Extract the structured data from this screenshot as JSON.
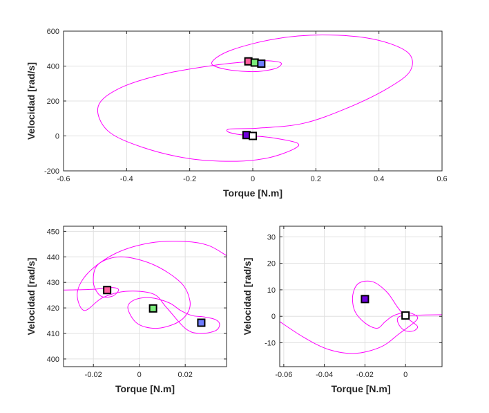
{
  "figure": {
    "background": "#ffffff",
    "curve_color": "#ff00ff",
    "grid_color": "#e0e0e0",
    "axis_color": "#262626"
  },
  "chart_data": [
    {
      "id": "top",
      "type": "line",
      "title": "",
      "xlabel": "Torque [N.m]",
      "ylabel": "Velocidad [rad/s]",
      "xlim": [
        -0.6,
        0.6
      ],
      "ylim": [
        -200,
        600
      ],
      "xticks": [
        -0.6,
        -0.4,
        -0.2,
        0,
        0.2,
        0.4,
        0.6
      ],
      "xtick_labels": [
        "-0.6",
        "-0.4",
        "-0.2",
        "0",
        "0.2",
        "0.4",
        "0.6"
      ],
      "yticks": [
        -200,
        0,
        200,
        400,
        600
      ],
      "ytick_labels": [
        "-200",
        "0",
        "200",
        "400",
        "600"
      ],
      "grid": true,
      "curve": [
        [
          0.0,
          0.0
        ],
        [
          0.06,
          -10
        ],
        [
          0.14,
          -40
        ],
        [
          0.13,
          -75
        ],
        [
          0.05,
          -125
        ],
        [
          -0.05,
          -145
        ],
        [
          -0.2,
          -130
        ],
        [
          -0.35,
          -65
        ],
        [
          -0.46,
          30
        ],
        [
          -0.49,
          170
        ],
        [
          -0.42,
          275
        ],
        [
          -0.28,
          355
        ],
        [
          -0.12,
          405
        ],
        [
          0.0,
          427
        ],
        [
          0.05,
          430
        ],
        [
          0.09,
          417
        ],
        [
          0.07,
          385
        ],
        [
          0.0,
          368
        ],
        [
          -0.09,
          383
        ],
        [
          -0.13,
          420
        ],
        [
          -0.07,
          490
        ],
        [
          0.07,
          555
        ],
        [
          0.22,
          578
        ],
        [
          0.38,
          555
        ],
        [
          0.49,
          480
        ],
        [
          0.5,
          375
        ],
        [
          0.43,
          275
        ],
        [
          0.3,
          160
        ],
        [
          0.16,
          72
        ],
        [
          0.02,
          45
        ],
        [
          -0.07,
          40
        ],
        [
          -0.08,
          25
        ],
        [
          -0.05,
          10
        ],
        [
          -0.02,
          5
        ]
      ],
      "markers": [
        {
          "x": -0.02,
          "y": 5,
          "color": "#6f00dc"
        },
        {
          "x": 0.0,
          "y": 0,
          "color": "#ffffff"
        },
        {
          "x": -0.014,
          "y": 427,
          "color": "#ff5e9e"
        },
        {
          "x": 0.006,
          "y": 420,
          "color": "#7aec7a"
        },
        {
          "x": 0.027,
          "y": 414,
          "color": "#6e7cff"
        }
      ]
    },
    {
      "id": "bottom-left",
      "type": "line",
      "title": "",
      "xlabel": "Torque [N.m]",
      "ylabel": "Velocidad [rad/s]",
      "xlim": [
        -0.033,
        0.038
      ],
      "ylim": [
        397,
        452
      ],
      "xticks": [
        -0.02,
        0,
        0.02
      ],
      "xtick_labels": [
        "-0.02",
        "0",
        "0.02"
      ],
      "yticks": [
        400,
        410,
        420,
        430,
        440,
        450
      ],
      "ytick_labels": [
        "400",
        "410",
        "420",
        "430",
        "440",
        "450"
      ],
      "grid": true,
      "curve": [
        [
          -0.033,
          427
        ],
        [
          -0.02,
          427.3
        ],
        [
          -0.012,
          428
        ],
        [
          -0.009,
          427
        ],
        [
          -0.012,
          424.5
        ],
        [
          -0.017,
          424.8
        ],
        [
          -0.02,
          430
        ],
        [
          -0.018,
          437
        ],
        [
          -0.008,
          440
        ],
        [
          0.006,
          437
        ],
        [
          0.018,
          430
        ],
        [
          0.022,
          423
        ],
        [
          0.021,
          418
        ],
        [
          0.016,
          414
        ],
        [
          0.007,
          412
        ],
        [
          -0.001,
          414
        ],
        [
          -0.005,
          420
        ],
        [
          -0.002,
          423.2
        ],
        [
          0.005,
          424
        ],
        [
          0.013,
          422
        ],
        [
          0.018,
          419
        ],
        [
          0.023,
          417
        ],
        [
          0.028,
          416.5
        ],
        [
          0.033,
          415.5
        ],
        [
          0.035,
          413.5
        ],
        [
          0.033,
          411
        ],
        [
          0.026,
          410
        ],
        [
          0.02,
          412
        ],
        [
          0.012,
          420
        ],
        [
          0.006,
          425.5
        ],
        [
          -0.006,
          426.5
        ],
        [
          -0.016,
          424
        ],
        [
          -0.024,
          419
        ],
        [
          -0.027,
          426
        ],
        [
          -0.022,
          434
        ],
        [
          -0.01,
          441.5
        ],
        [
          0.005,
          445.5
        ],
        [
          0.02,
          446
        ],
        [
          0.03,
          444.5
        ],
        [
          0.038,
          440.5
        ]
      ],
      "markers": [
        {
          "x": -0.014,
          "y": 427,
          "color": "#ff5e9e"
        },
        {
          "x": 0.006,
          "y": 419.8,
          "color": "#7aec7a"
        },
        {
          "x": 0.027,
          "y": 414.2,
          "color": "#6e7cff"
        }
      ]
    },
    {
      "id": "bottom-right",
      "type": "line",
      "title": "",
      "xlabel": "Torque [N.m]",
      "ylabel": "Velocidad [rad/s]",
      "xlim": [
        -0.062,
        0.018
      ],
      "ylim": [
        -19,
        34
      ],
      "xticks": [
        -0.06,
        -0.04,
        -0.02,
        0
      ],
      "xtick_labels": [
        "-0.06",
        "-0.04",
        "-0.02",
        "0"
      ],
      "yticks": [
        -10,
        0,
        10,
        20,
        30
      ],
      "ytick_labels": [
        "-10",
        "0",
        "10",
        "20",
        "30"
      ],
      "grid": true,
      "curve": [
        [
          -0.062,
          -2
        ],
        [
          -0.05,
          -8
        ],
        [
          -0.038,
          -12.5
        ],
        [
          -0.025,
          -14
        ],
        [
          -0.012,
          -11.5
        ],
        [
          -0.003,
          -6.5
        ],
        [
          0.004,
          -2.5
        ],
        [
          0.006,
          -0.5
        ],
        [
          0.004,
          0.8
        ],
        [
          0.0,
          1.5
        ],
        [
          -0.006,
          0.2
        ],
        [
          -0.01,
          -2
        ],
        [
          -0.014,
          -4.5
        ],
        [
          -0.02,
          -2.5
        ],
        [
          -0.025,
          2
        ],
        [
          -0.026,
          8
        ],
        [
          -0.023,
          12.5
        ],
        [
          -0.016,
          13
        ],
        [
          -0.009,
          9
        ],
        [
          -0.004,
          3.5
        ],
        [
          0.0,
          -0.2
        ],
        [
          0.004,
          -2.5
        ],
        [
          0.006,
          -4
        ],
        [
          0.004,
          -5.5
        ],
        [
          0.0,
          -5.5
        ],
        [
          -0.003,
          -3.5
        ],
        [
          -0.004,
          -1
        ],
        [
          -0.002,
          0.2
        ],
        [
          0.004,
          0.4
        ],
        [
          0.01,
          0.5
        ],
        [
          0.018,
          0.6
        ]
      ],
      "markers": [
        {
          "x": -0.02,
          "y": 6.5,
          "color": "#6f00dc"
        },
        {
          "x": 0.0,
          "y": 0.3,
          "color": "#ffffff"
        }
      ]
    }
  ]
}
